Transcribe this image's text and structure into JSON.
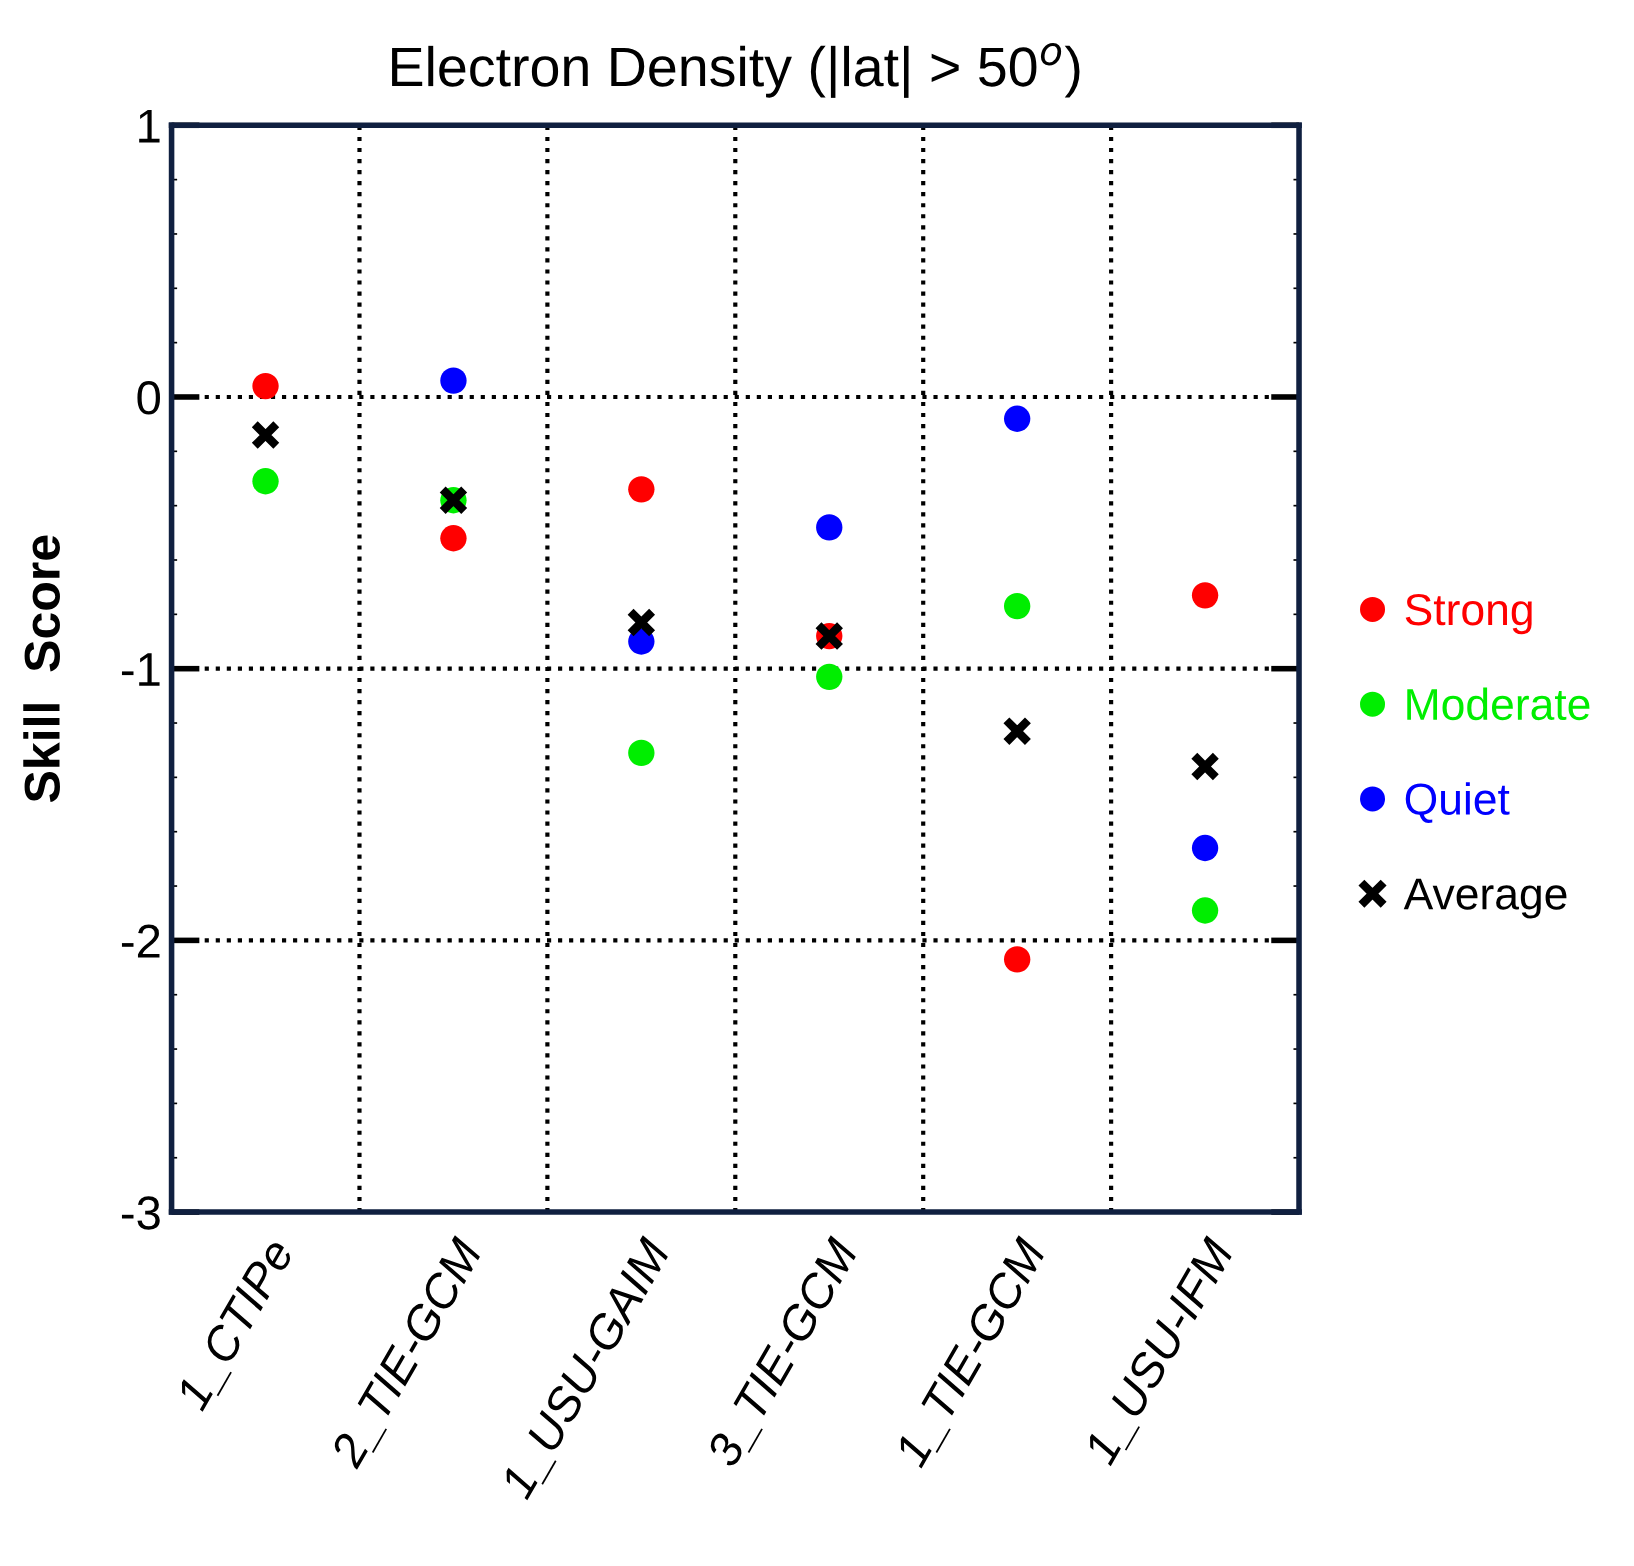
{
  "chart_data": {
    "type": "scatter",
    "title": "Electron Density (|lat| > 50$^{o}$)",
    "ylabel": "Skill  Score",
    "categories": [
      "1_CTIPe",
      "2_TIE-GCM",
      "1_USU-GAIM",
      "3_TIE-GCM",
      "1_TIE-GCM",
      "1_USU-IFM"
    ],
    "series": [
      {
        "name": "Strong",
        "color": "#ff0000",
        "marker": "circle",
        "values": [
          0.04,
          -0.52,
          -0.34,
          -0.88,
          -2.07,
          -0.73
        ]
      },
      {
        "name": "Moderate",
        "color": "#00ee00",
        "marker": "circle",
        "values": [
          -0.31,
          -0.38,
          -1.31,
          -1.03,
          -0.77,
          -1.89
        ]
      },
      {
        "name": "Quiet",
        "color": "#0000ff",
        "marker": "circle",
        "values": [
          null,
          0.06,
          -0.9,
          -0.48,
          -0.08,
          -1.66
        ]
      },
      {
        "name": "Average",
        "color": "#000000",
        "marker": "cross",
        "values": [
          -0.14,
          -0.38,
          -0.83,
          -0.88,
          -1.23,
          -1.36
        ]
      }
    ],
    "ylim": [
      -3,
      1
    ],
    "yticks": [
      -3,
      -2,
      -1,
      0,
      1
    ],
    "grid": true,
    "legend": "right"
  }
}
